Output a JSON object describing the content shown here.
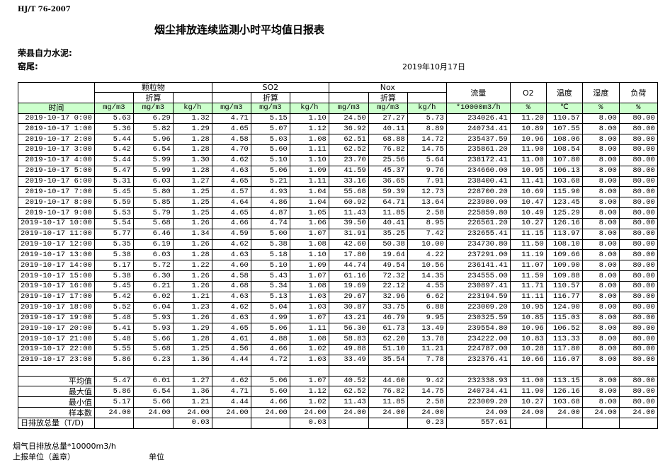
{
  "standard": "HJ/T  76-2007",
  "title": "烟尘排放连续监测小时平均值日报表",
  "company": "荣县自力水泥:",
  "kiln": "窑尾:",
  "date": "2019年10月17日",
  "header": {
    "groups": [
      "颗粒物",
      "SO2",
      "Nox"
    ],
    "converted": "折算",
    "flow": "流量",
    "o2": "O2",
    "temp": "温度",
    "humidity": "湿度",
    "load": "负荷",
    "time": "时间",
    "units": [
      "mg/m3",
      "mg/m3",
      "kg/h",
      "mg/m3",
      "mg/m3",
      "kg/h",
      "mg/m3",
      "mg/m3",
      "kg/h",
      "*10000m3/h",
      "%",
      "℃",
      "%",
      "%"
    ]
  },
  "rows": [
    [
      "2019-10-17 0:00",
      "5.63",
      "6.29",
      "1.32",
      "4.71",
      "5.15",
      "1.10",
      "24.50",
      "27.27",
      "5.73",
      "234026.41",
      "11.20",
      "110.57",
      "8.00",
      "80.00"
    ],
    [
      "2019-10-17 1:00",
      "5.36",
      "5.82",
      "1.29",
      "4.65",
      "5.07",
      "1.12",
      "36.92",
      "40.11",
      "8.89",
      "240734.41",
      "10.89",
      "107.55",
      "8.00",
      "80.00"
    ],
    [
      "2019-10-17 2:00",
      "5.44",
      "5.96",
      "1.28",
      "4.58",
      "5.03",
      "1.08",
      "62.51",
      "68.88",
      "14.72",
      "235437.59",
      "10.96",
      "108.06",
      "8.00",
      "80.00"
    ],
    [
      "2019-10-17 3:00",
      "5.42",
      "6.54",
      "1.28",
      "4.70",
      "5.60",
      "1.11",
      "62.52",
      "76.82",
      "14.75",
      "235861.20",
      "11.90",
      "108.54",
      "8.00",
      "80.00"
    ],
    [
      "2019-10-17 4:00",
      "5.44",
      "5.99",
      "1.30",
      "4.62",
      "5.10",
      "1.10",
      "23.70",
      "25.56",
      "5.64",
      "238172.41",
      "11.00",
      "107.80",
      "8.00",
      "80.00"
    ],
    [
      "2019-10-17 5:00",
      "5.47",
      "5.99",
      "1.28",
      "4.63",
      "5.06",
      "1.09",
      "41.59",
      "45.37",
      "9.76",
      "234660.00",
      "10.95",
      "106.13",
      "8.00",
      "80.00"
    ],
    [
      "2019-10-17 6:00",
      "5.31",
      "6.03",
      "1.27",
      "4.65",
      "5.21",
      "1.11",
      "33.16",
      "36.65",
      "7.91",
      "238400.41",
      "11.41",
      "103.68",
      "8.00",
      "80.00"
    ],
    [
      "2019-10-17 7:00",
      "5.45",
      "5.80",
      "1.25",
      "4.57",
      "4.93",
      "1.04",
      "55.68",
      "59.39",
      "12.73",
      "228700.20",
      "10.69",
      "115.90",
      "8.00",
      "80.00"
    ],
    [
      "2019-10-17 8:00",
      "5.59",
      "5.85",
      "1.25",
      "4.64",
      "4.86",
      "1.04",
      "60.92",
      "64.71",
      "13.64",
      "223980.00",
      "10.47",
      "123.45",
      "8.00",
      "80.00"
    ],
    [
      "2019-10-17 9:00",
      "5.53",
      "5.79",
      "1.25",
      "4.65",
      "4.87",
      "1.05",
      "11.43",
      "11.85",
      "2.58",
      "225859.80",
      "10.49",
      "125.29",
      "8.00",
      "80.00"
    ],
    [
      "2019-10-17 10:00",
      "5.54",
      "5.68",
      "1.26",
      "4.66",
      "4.74",
      "1.06",
      "39.50",
      "40.41",
      "8.95",
      "226561.20",
      "10.27",
      "126.16",
      "8.00",
      "80.00"
    ],
    [
      "2019-10-17 11:00",
      "5.77",
      "6.46",
      "1.34",
      "4.59",
      "5.00",
      "1.07",
      "31.91",
      "35.25",
      "7.42",
      "232655.41",
      "11.15",
      "113.97",
      "8.00",
      "80.00"
    ],
    [
      "2019-10-17 12:00",
      "5.35",
      "6.19",
      "1.26",
      "4.62",
      "5.38",
      "1.08",
      "42.60",
      "50.38",
      "10.00",
      "234730.80",
      "11.50",
      "108.10",
      "8.00",
      "80.00"
    ],
    [
      "2019-10-17 13:00",
      "5.38",
      "6.03",
      "1.28",
      "4.63",
      "5.18",
      "1.10",
      "17.80",
      "19.64",
      "4.22",
      "237291.00",
      "11.19",
      "109.66",
      "8.00",
      "80.00"
    ],
    [
      "2019-10-17 14:00",
      "5.17",
      "5.72",
      "1.22",
      "4.60",
      "5.10",
      "1.09",
      "44.74",
      "49.54",
      "10.56",
      "236141.41",
      "11.07",
      "109.90",
      "8.00",
      "80.00"
    ],
    [
      "2019-10-17 15:00",
      "5.38",
      "6.30",
      "1.26",
      "4.58",
      "5.43",
      "1.07",
      "61.16",
      "72.32",
      "14.35",
      "234555.00",
      "11.59",
      "109.88",
      "8.00",
      "80.00"
    ],
    [
      "2019-10-17 16:00",
      "5.45",
      "6.21",
      "1.26",
      "4.68",
      "5.34",
      "1.08",
      "19.69",
      "22.12",
      "4.55",
      "230897.41",
      "11.71",
      "110.57",
      "8.00",
      "80.00"
    ],
    [
      "2019-10-17 17:00",
      "5.42",
      "6.02",
      "1.21",
      "4.63",
      "5.13",
      "1.03",
      "29.67",
      "32.96",
      "6.62",
      "223194.59",
      "11.11",
      "116.77",
      "8.00",
      "80.00"
    ],
    [
      "2019-10-17 18:00",
      "5.52",
      "6.04",
      "1.23",
      "4.62",
      "5.04",
      "1.03",
      "30.87",
      "33.75",
      "6.88",
      "223009.20",
      "10.95",
      "124.90",
      "8.00",
      "80.00"
    ],
    [
      "2019-10-17 19:00",
      "5.48",
      "5.93",
      "1.26",
      "4.63",
      "4.99",
      "1.07",
      "43.21",
      "46.79",
      "9.95",
      "230325.59",
      "10.85",
      "115.03",
      "8.00",
      "80.00"
    ],
    [
      "2019-10-17 20:00",
      "5.41",
      "5.93",
      "1.29",
      "4.65",
      "5.06",
      "1.11",
      "56.30",
      "61.73",
      "13.49",
      "239554.80",
      "10.96",
      "106.52",
      "8.00",
      "80.00"
    ],
    [
      "2019-10-17 21:00",
      "5.48",
      "5.66",
      "1.28",
      "4.61",
      "4.88",
      "1.08",
      "58.83",
      "62.20",
      "13.78",
      "234222.00",
      "10.83",
      "113.33",
      "8.00",
      "80.00"
    ],
    [
      "2019-10-17 22:00",
      "5.55",
      "5.68",
      "1.25",
      "4.56",
      "4.66",
      "1.02",
      "49.88",
      "51.10",
      "11.21",
      "224787.00",
      "10.28",
      "117.80",
      "8.00",
      "80.00"
    ],
    [
      "2019-10-17 23:00",
      "5.86",
      "6.23",
      "1.36",
      "4.44",
      "4.72",
      "1.03",
      "33.49",
      "35.54",
      "7.78",
      "232376.41",
      "10.66",
      "116.07",
      "8.00",
      "80.00"
    ]
  ],
  "summary": [
    [
      "平均值",
      "5.47",
      "6.01",
      "1.27",
      "4.62",
      "5.06",
      "1.07",
      "40.52",
      "44.60",
      "9.42",
      "232338.93",
      "11.00",
      "113.15",
      "8.00",
      "80.00"
    ],
    [
      "最大值",
      "5.86",
      "6.54",
      "1.36",
      "4.71",
      "5.60",
      "1.12",
      "62.52",
      "76.82",
      "14.75",
      "240734.41",
      "11.90",
      "126.16",
      "8.00",
      "80.00"
    ],
    [
      "最小值",
      "5.17",
      "5.66",
      "1.21",
      "4.44",
      "4.66",
      "1.02",
      "11.43",
      "11.85",
      "2.58",
      "223009.20",
      "10.27",
      "103.68",
      "8.00",
      "80.00"
    ],
    [
      "样本数",
      "24.00",
      "24.00",
      "24.00",
      "24.00",
      "24.00",
      "24.00",
      "24.00",
      "24.00",
      "24.00",
      "24.00",
      "24.00",
      "24.00",
      "24.00",
      "24.00"
    ],
    [
      "日排放总量（T/D)",
      "",
      "",
      "0.03",
      "",
      "",
      "0.03",
      "",
      "",
      "0.23",
      "557.61",
      "",
      "",
      "",
      ""
    ]
  ],
  "footer": {
    "flue_total": "烟气日排放总量*10000m3/h",
    "reporter": "上报单位（盖章）",
    "unit": "单位"
  },
  "colors": {
    "header_green": "#ccffcc"
  }
}
